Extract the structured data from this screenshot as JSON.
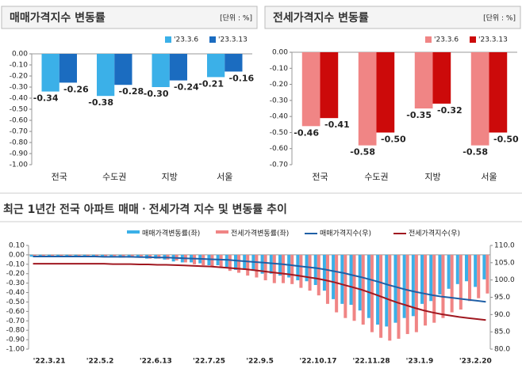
{
  "chart_data": [
    {
      "type": "bar",
      "title": "매매가격지수 변동률",
      "unit": "[단위 : %]",
      "categories": [
        "전국",
        "수도권",
        "지방",
        "서울"
      ],
      "series": [
        {
          "name": "'23.3.6",
          "color": "#3bb0e8",
          "values": [
            -0.34,
            -0.38,
            -0.3,
            -0.21
          ],
          "value_labels": [
            "-0.34",
            "-0.38",
            "-0.30",
            "-0.21"
          ]
        },
        {
          "name": "'23.3.13",
          "color": "#1b6cc0",
          "values": [
            -0.26,
            -0.28,
            -0.24,
            -0.16
          ],
          "value_labels": [
            "-0.26",
            "-0.28",
            "-0.24",
            "-0.16"
          ]
        }
      ],
      "ylim": [
        -1.0,
        0.0
      ],
      "yticks": [
        {
          "value": 0,
          "label": "0.00"
        },
        {
          "value": -0.1,
          "label": "-0.10"
        },
        {
          "value": -0.2,
          "label": "-0.20"
        },
        {
          "value": -0.3,
          "label": "-0.30"
        },
        {
          "value": -0.4,
          "label": "-0.40"
        },
        {
          "value": -0.5,
          "label": "-0.50"
        },
        {
          "value": -0.6,
          "label": "-0.60"
        },
        {
          "value": -0.7,
          "label": "-0.70"
        },
        {
          "value": -0.8,
          "label": "-0.80"
        },
        {
          "value": -0.9,
          "label": "-0.90"
        },
        {
          "value": -1.0,
          "label": "-1.00"
        }
      ]
    },
    {
      "type": "bar",
      "title": "전세가격지수 변동률",
      "unit": "[단위 : %]",
      "categories": [
        "전국",
        "수도권",
        "지방",
        "서울"
      ],
      "series": [
        {
          "name": "'23.3.6",
          "color": "#f08585",
          "values": [
            -0.46,
            -0.58,
            -0.35,
            -0.58
          ],
          "value_labels": [
            "-0.46",
            "-0.58",
            "-0.35",
            "-0.58"
          ]
        },
        {
          "name": "'23.3.13",
          "color": "#cc0a0a",
          "values": [
            -0.41,
            -0.5,
            -0.32,
            -0.5
          ],
          "value_labels": [
            "-0.41",
            "-0.50",
            "-0.32",
            "-0.50"
          ]
        }
      ],
      "ylim": [
        -0.7,
        0.0
      ],
      "yticks": [
        {
          "value": 0,
          "label": "0.00"
        },
        {
          "value": -0.1,
          "label": "-0.10"
        },
        {
          "value": -0.2,
          "label": "-0.20"
        },
        {
          "value": -0.3,
          "label": "-0.30"
        },
        {
          "value": -0.4,
          "label": "-0.40"
        },
        {
          "value": -0.5,
          "label": "-0.50"
        },
        {
          "value": -0.6,
          "label": "-0.60"
        },
        {
          "value": -0.7,
          "label": "-0.70"
        }
      ]
    },
    {
      "type": "combo",
      "title": "최근 1년간 전국 아파트 매매ㆍ전세가격 지수 및 변동률 추이",
      "categories": [
        "'22.3.21",
        null,
        null,
        null,
        null,
        null,
        "'22.5.2",
        null,
        null,
        null,
        null,
        null,
        "'22.6.13",
        null,
        null,
        null,
        null,
        null,
        "'22.7.25",
        null,
        null,
        null,
        null,
        null,
        "'22.9.5",
        null,
        null,
        null,
        null,
        null,
        "'22.10.17",
        null,
        null,
        null,
        null,
        null,
        "'22.11.28",
        null,
        null,
        null,
        null,
        null,
        "'23.1.9",
        null,
        null,
        null,
        null,
        null,
        "'23.2.20",
        null,
        null,
        null
      ],
      "series": [
        {
          "name": "매매가격변동률(좌)",
          "kind": "bar",
          "color": "#3bb0e8",
          "values": [
            -0.02,
            -0.02,
            -0.02,
            -0.01,
            -0.01,
            -0.01,
            -0.01,
            -0.01,
            -0.02,
            -0.02,
            -0.03,
            -0.03,
            -0.03,
            -0.04,
            -0.04,
            -0.05,
            -0.07,
            -0.08,
            -0.08,
            -0.09,
            -0.11,
            -0.11,
            -0.14,
            -0.16,
            -0.16,
            -0.17,
            -0.2,
            -0.2,
            -0.22,
            -0.24,
            -0.27,
            -0.28,
            -0.32,
            -0.38,
            -0.47,
            -0.52,
            -0.53,
            -0.59,
            -0.67,
            -0.74,
            -0.76,
            -0.72,
            -0.67,
            -0.65,
            -0.52,
            -0.49,
            -0.42,
            -0.36,
            -0.31,
            -0.28,
            -0.34,
            -0.26
          ]
        },
        {
          "name": "전세가격변동률(좌)",
          "kind": "bar",
          "color": "#f08585",
          "values": [
            -0.02,
            -0.02,
            -0.02,
            -0.02,
            -0.02,
            -0.02,
            -0.02,
            -0.02,
            -0.02,
            -0.02,
            -0.03,
            -0.03,
            -0.03,
            -0.04,
            -0.04,
            -0.05,
            -0.06,
            -0.08,
            -0.1,
            -0.11,
            -0.12,
            -0.14,
            -0.17,
            -0.19,
            -0.22,
            -0.24,
            -0.27,
            -0.3,
            -0.3,
            -0.31,
            -0.35,
            -0.38,
            -0.43,
            -0.52,
            -0.61,
            -0.67,
            -0.7,
            -0.74,
            -0.82,
            -0.88,
            -0.91,
            -0.89,
            -0.84,
            -0.82,
            -0.75,
            -0.72,
            -0.67,
            -0.61,
            -0.58,
            -0.49,
            -0.46,
            -0.41
          ]
        },
        {
          "name": "매매가격지수(우)",
          "kind": "line",
          "axis": "y2",
          "color": "#1f5fa6",
          "values": [
            106.8,
            106.8,
            106.8,
            106.8,
            106.8,
            106.8,
            106.8,
            106.8,
            106.7,
            106.7,
            106.7,
            106.7,
            106.6,
            106.6,
            106.5,
            106.5,
            106.4,
            106.3,
            106.2,
            106.1,
            106.0,
            105.9,
            105.8,
            105.6,
            105.4,
            105.2,
            105.0,
            104.8,
            104.6,
            104.3,
            104.0,
            103.7,
            103.4,
            103.0,
            102.5,
            102.0,
            101.4,
            100.8,
            100.1,
            99.4,
            98.6,
            97.9,
            97.2,
            96.6,
            96.1,
            95.6,
            95.2,
            94.9,
            94.6,
            94.3,
            94.0,
            93.7
          ]
        },
        {
          "name": "전세가격지수(우)",
          "kind": "line",
          "axis": "y2",
          "color": "#a01820",
          "values": [
            104.7,
            104.7,
            104.7,
            104.7,
            104.7,
            104.7,
            104.7,
            104.7,
            104.7,
            104.6,
            104.6,
            104.6,
            104.5,
            104.5,
            104.4,
            104.4,
            104.3,
            104.2,
            104.1,
            104.0,
            103.9,
            103.7,
            103.5,
            103.3,
            103.1,
            102.8,
            102.5,
            102.2,
            101.9,
            101.6,
            101.2,
            100.8,
            100.4,
            99.9,
            99.3,
            98.6,
            97.9,
            97.2,
            96.3,
            95.4,
            94.4,
            93.5,
            92.7,
            91.9,
            91.2,
            90.6,
            90.1,
            89.7,
            89.3,
            89.0,
            88.7,
            88.4
          ]
        }
      ],
      "ylim": [
        -1.0,
        0.1
      ],
      "yticks": [
        {
          "value": 0.1,
          "label": "0.10"
        },
        {
          "value": 0,
          "label": "0.00"
        },
        {
          "value": -0.1,
          "label": "-0.10"
        },
        {
          "value": -0.2,
          "label": "-0.20"
        },
        {
          "value": -0.3,
          "label": "-0.30"
        },
        {
          "value": -0.4,
          "label": "-0.40"
        },
        {
          "value": -0.5,
          "label": "-0.50"
        },
        {
          "value": -0.6,
          "label": "-0.60"
        },
        {
          "value": -0.7,
          "label": "-0.70"
        },
        {
          "value": -0.8,
          "label": "-0.80"
        },
        {
          "value": -0.9,
          "label": "-0.90"
        },
        {
          "value": -1.0,
          "label": "-1.00"
        }
      ],
      "y2lim": [
        80,
        110
      ],
      "y2ticks": [
        {
          "value": 110,
          "label": "110.0"
        },
        {
          "value": 105,
          "label": "105.0"
        },
        {
          "value": 100,
          "label": "100.0"
        },
        {
          "value": 95,
          "label": "95.0"
        },
        {
          "value": 90,
          "label": "90.0"
        },
        {
          "value": 85,
          "label": "85.0"
        },
        {
          "value": 80,
          "label": "80.0"
        }
      ]
    }
  ]
}
